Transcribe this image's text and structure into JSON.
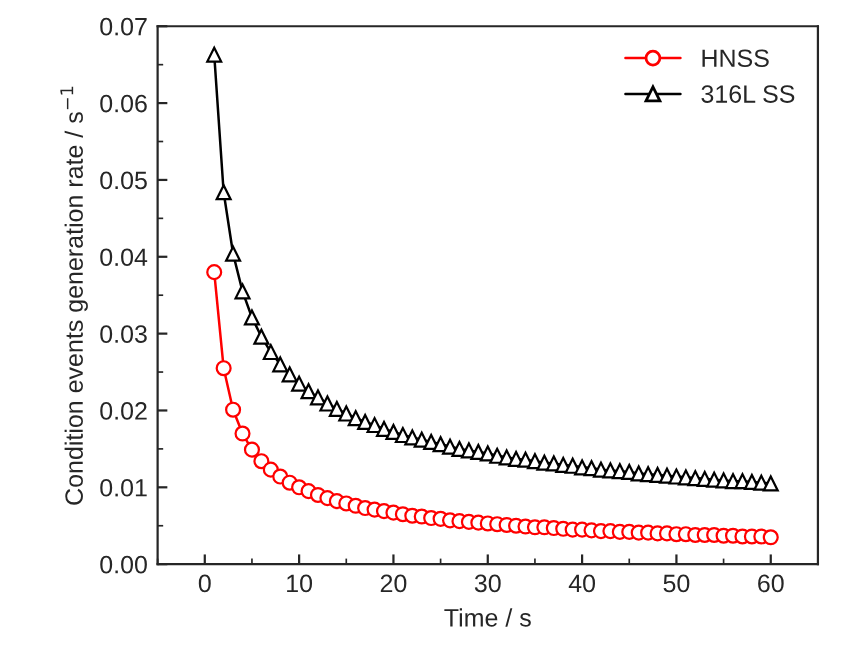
{
  "chart_data": {
    "type": "line",
    "xlabel": "Time / s",
    "ylabel": "Condition events generation rate / s$^{−1}$",
    "x": [
      1,
      2,
      3,
      4,
      5,
      6,
      7,
      8,
      9,
      10,
      11,
      12,
      13,
      14,
      15,
      16,
      17,
      18,
      19,
      20,
      21,
      22,
      23,
      24,
      25,
      26,
      27,
      28,
      29,
      30,
      31,
      32,
      33,
      34,
      35,
      36,
      37,
      38,
      39,
      40,
      41,
      42,
      43,
      44,
      45,
      46,
      47,
      48,
      49,
      50,
      51,
      52,
      53,
      54,
      55,
      56,
      57,
      58,
      59,
      60
    ],
    "series": [
      {
        "name": "HNSS",
        "color": "#ff0000",
        "marker": "circle",
        "values": [
          0.038,
          0.0255,
          0.0201,
          0.017,
          0.0149,
          0.0134,
          0.0123,
          0.0114,
          0.0106,
          0.01,
          0.0095,
          0.009,
          0.0086,
          0.0082,
          0.0079,
          0.0076,
          0.0073,
          0.0071,
          0.0069,
          0.0067,
          0.0065,
          0.0063,
          0.0062,
          0.006,
          0.0059,
          0.0057,
          0.0056,
          0.0055,
          0.0054,
          0.0053,
          0.0052,
          0.0051,
          0.005,
          0.0049,
          0.0048,
          0.0048,
          0.0047,
          0.0046,
          0.0045,
          0.0045,
          0.0044,
          0.0043,
          0.0043,
          0.0042,
          0.0042,
          0.0041,
          0.0041,
          0.004,
          0.004,
          0.0039,
          0.0039,
          0.0038,
          0.0038,
          0.0038,
          0.0037,
          0.0037,
          0.0036,
          0.0036,
          0.0036,
          0.0035
        ]
      },
      {
        "name": "316L SS",
        "color": "#000000",
        "marker": "triangle",
        "values": [
          0.0663,
          0.0484,
          0.0404,
          0.0355,
          0.0321,
          0.0296,
          0.0276,
          0.026,
          0.0247,
          0.0235,
          0.0225,
          0.0217,
          0.0209,
          0.0202,
          0.0196,
          0.019,
          0.0185,
          0.0181,
          0.0176,
          0.0172,
          0.0168,
          0.0165,
          0.0162,
          0.0159,
          0.0156,
          0.0153,
          0.015,
          0.0148,
          0.0146,
          0.0144,
          0.0141,
          0.0139,
          0.0137,
          0.0136,
          0.0134,
          0.0132,
          0.0131,
          0.0129,
          0.0128,
          0.0126,
          0.0125,
          0.0123,
          0.0122,
          0.0121,
          0.012,
          0.0118,
          0.0117,
          0.0116,
          0.0115,
          0.0114,
          0.0113,
          0.0112,
          0.0111,
          0.011,
          0.0109,
          0.0108,
          0.0108,
          0.0107,
          0.0106,
          0.0105
        ]
      }
    ],
    "xlim": [
      -5,
      65
    ],
    "xticks": [
      0,
      10,
      20,
      30,
      40,
      50,
      60
    ],
    "ylim": [
      0,
      0.07
    ],
    "yticks": [
      {
        "value": 0,
        "label": "0.00"
      },
      {
        "value": 0.01,
        "label": "0.01"
      },
      {
        "value": 0.02,
        "label": "0.02"
      },
      {
        "value": 0.03,
        "label": "0.03"
      },
      {
        "value": 0.04,
        "label": "0.04"
      },
      {
        "value": 0.05,
        "label": "0.05"
      },
      {
        "value": 0.06,
        "label": "0.06"
      },
      {
        "value": 0.07,
        "label": "0.07"
      }
    ],
    "legend": "top right",
    "grid": false,
    "line_style": "solid"
  }
}
